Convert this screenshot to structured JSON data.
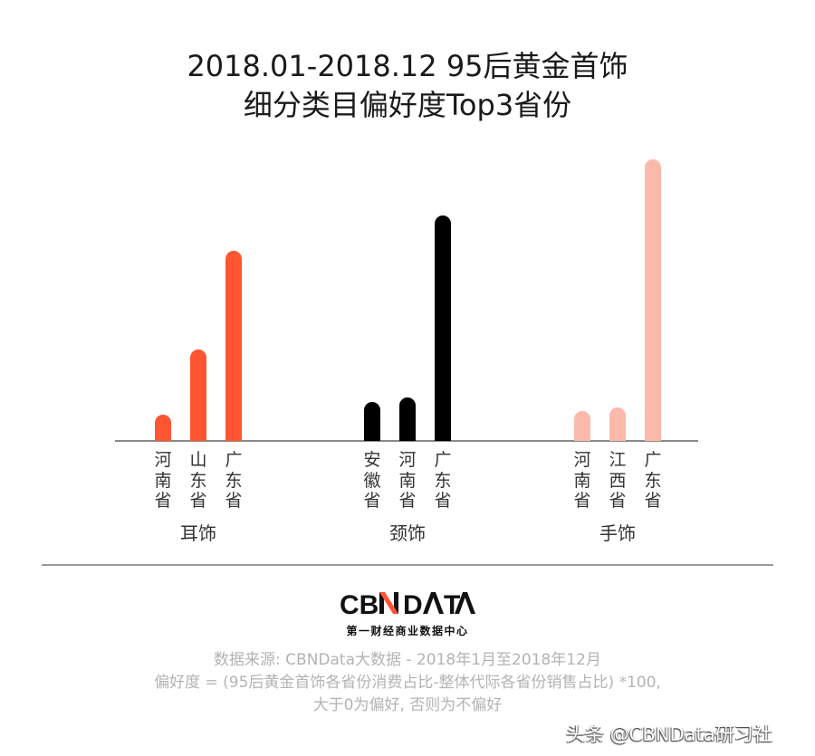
{
  "title": {
    "line1": "2018.01-2018.12 95后黄金首饰",
    "line2": "细分类目偏好度Top3省份"
  },
  "colors": {
    "earrings": "#ff5533",
    "necklace": "#000000",
    "bracelet": "#fbb9ab",
    "axis": "#8a8a8a",
    "note_text": "#b3b3b3"
  },
  "chart_data": {
    "type": "bar",
    "title": "2018.01-2018.12 95后黄金首饰 细分类目偏好度Top3省份",
    "xlabel": "",
    "ylabel": "偏好度",
    "grid": false,
    "legend": "none",
    "y_axis_shown": false,
    "note": "No numeric axis or data labels shown; values are relative bar heights in pixels above baseline",
    "groups": [
      {
        "category": "耳饰",
        "color": "#ff5533",
        "provinces": [
          "河南省",
          "山东省",
          "广东省"
        ],
        "values": [
          29,
          101,
          210
        ]
      },
      {
        "category": "颈饰",
        "color": "#000000",
        "provinces": [
          "安徽省",
          "河南省",
          "广东省"
        ],
        "values": [
          43,
          48,
          249
        ]
      },
      {
        "category": "手饰",
        "color": "#fbb9ab",
        "provinces": [
          "河南省",
          "江西省",
          "广东省"
        ],
        "values": [
          33,
          37,
          311
        ]
      }
    ]
  },
  "labels": {
    "g0": {
      "cat": "耳饰",
      "p0": "河南省",
      "p1": "山东省",
      "p2": "广东省"
    },
    "g1": {
      "cat": "颈饰",
      "p0": "安徽省",
      "p1": "河南省",
      "p2": "广东省"
    },
    "g2": {
      "cat": "手饰",
      "p0": "河南省",
      "p1": "江西省",
      "p2": "广东省"
    }
  },
  "logo": {
    "main": "CBNDATA",
    "sub": "第一财经商业数据中心"
  },
  "notes": {
    "source": "数据来源: CBNData大数据 - 2018年1月至2018年12月",
    "formula": "偏好度 = (95后黄金首饰各省份消费占比-整体代际各省份销售占比) *100,",
    "explanation": "大于0为偏好, 否则为不偏好"
  },
  "watermark": "头条 @CBNData研习社"
}
